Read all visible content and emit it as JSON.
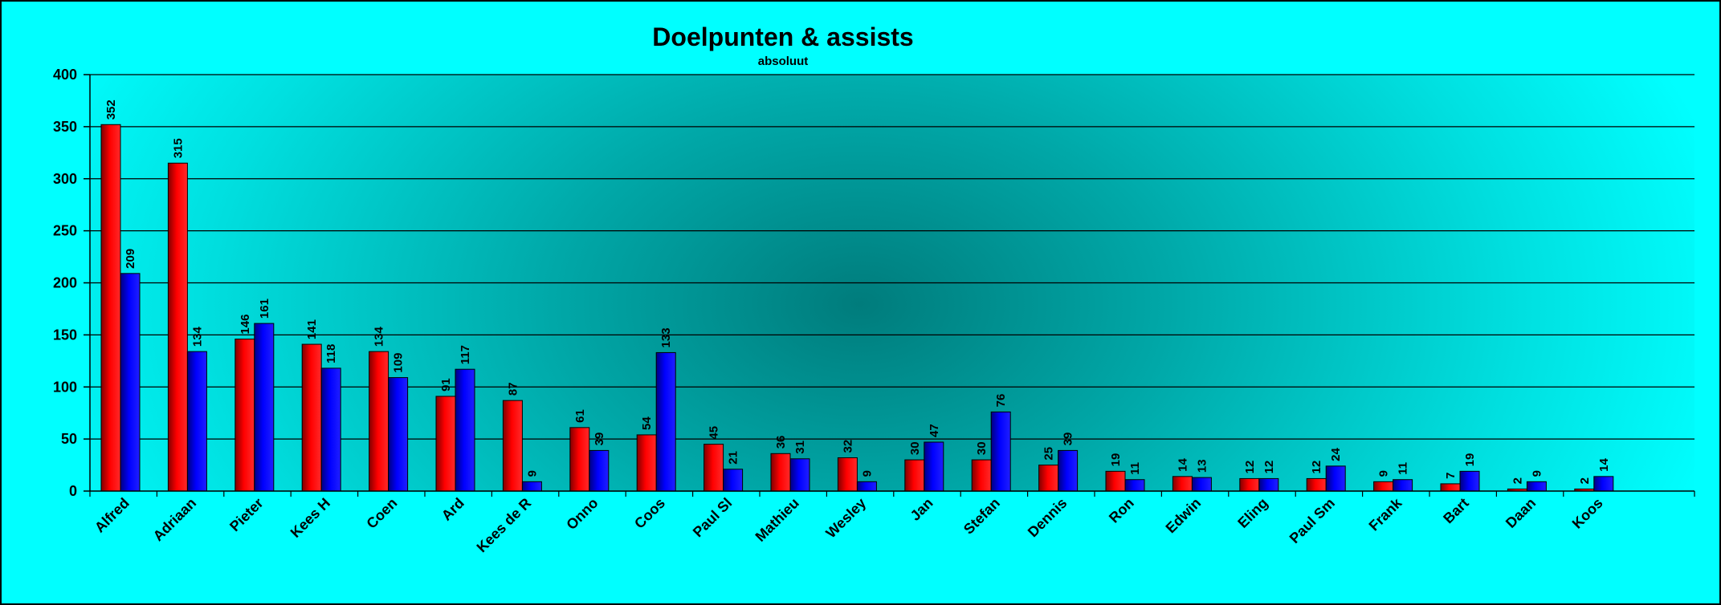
{
  "chart_data": {
    "type": "bar",
    "title": "Doelpunten & assists",
    "subtitle": "absoluut",
    "xlabel": "",
    "ylabel": "",
    "ylim": [
      0,
      400
    ],
    "yticks": [
      0,
      50,
      100,
      150,
      200,
      250,
      300,
      350,
      400
    ],
    "grid": true,
    "legend": "none",
    "categories": [
      "Alfred",
      "Adriaan",
      "Pieter",
      "Kees H",
      "Coen",
      "Ard",
      "Kees de R",
      "Onno",
      "Coos",
      "Paul Sl",
      "Mathieu",
      "Wesley",
      "Jan",
      "Stefan",
      "Dennis",
      "Ron",
      "Edwin",
      "Eling",
      "Paul Sm",
      "Frank",
      "Bart",
      "Daan",
      "Koos"
    ],
    "series": [
      {
        "color": "#ff0000",
        "values": [
          352,
          315,
          146,
          141,
          134,
          91,
          87,
          61,
          54,
          45,
          36,
          32,
          30,
          30,
          25,
          19,
          14,
          12,
          12,
          9,
          7,
          2,
          2
        ]
      },
      {
        "color": "#0000ff",
        "values": [
          209,
          134,
          161,
          118,
          109,
          117,
          9,
          39,
          133,
          21,
          31,
          9,
          47,
          76,
          39,
          11,
          13,
          12,
          24,
          11,
          19,
          9,
          14
        ]
      }
    ]
  },
  "colors": {
    "background": "#00ffff",
    "plot_center": "#008080"
  }
}
